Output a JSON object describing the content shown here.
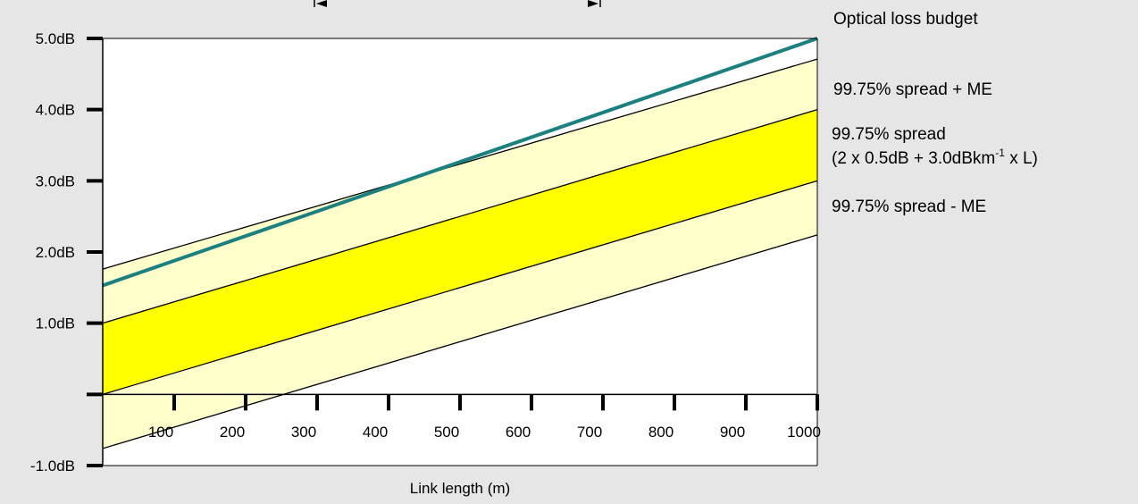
{
  "chart_data": {
    "type": "line",
    "title": "",
    "xlabel": "Link length (m)",
    "ylabel": "",
    "xlim": [
      0,
      1000
    ],
    "ylim": [
      -1.0,
      5.0
    ],
    "x_ticks": [
      100,
      200,
      300,
      400,
      500,
      600,
      700,
      800,
      900,
      1000
    ],
    "x_tick_labels": [
      "100",
      "200",
      "300",
      "400",
      "500",
      "600",
      "700",
      "800",
      "900",
      "1000"
    ],
    "y_ticks": [
      -1.0,
      0.0,
      1.0,
      2.0,
      3.0,
      4.0,
      5.0
    ],
    "y_tick_labels": [
      "-1.0dB",
      "",
      "1.0dB",
      "2.0dB",
      "3.0dB",
      "4.0dB",
      "5.0dB"
    ],
    "grid": false,
    "series": [
      {
        "name": "Optical loss budget",
        "x": [
          0,
          1000
        ],
        "y": [
          1.53,
          5.0
        ],
        "color": "#1a8080"
      },
      {
        "name": "99.75% spread + ME",
        "x": [
          0,
          1000
        ],
        "y": [
          1.76,
          4.71
        ],
        "color": "#000000"
      },
      {
        "name": "",
        "x": [
          0,
          1000
        ],
        "y": [
          1.0,
          4.0
        ],
        "color": "#000000"
      },
      {
        "name": "",
        "x": [
          0,
          1000
        ],
        "y": [
          0.0,
          3.0
        ],
        "color": "#000000"
      },
      {
        "name": "99.75% spread - ME",
        "x": [
          0,
          1000
        ],
        "y": [
          -0.76,
          2.24
        ],
        "color": "#000000"
      }
    ],
    "bands": [
      {
        "upper_series": 1,
        "lower_series": 4,
        "color": "#ffffcc"
      },
      {
        "upper_series": 2,
        "lower_series": 3,
        "color": "#ffff00"
      }
    ],
    "legend": {
      "placement": "right",
      "entries": [
        {
          "lines": [
            "Optical loss budget"
          ]
        },
        {
          "lines": [
            "99.75% spread + ME"
          ]
        },
        {
          "lines": [
            "99.75% spread",
            "(2 x 0.5dB + 3.0dBkm-1 x L)"
          ]
        },
        {
          "lines": [
            "99.75% spread - ME"
          ]
        }
      ]
    }
  }
}
